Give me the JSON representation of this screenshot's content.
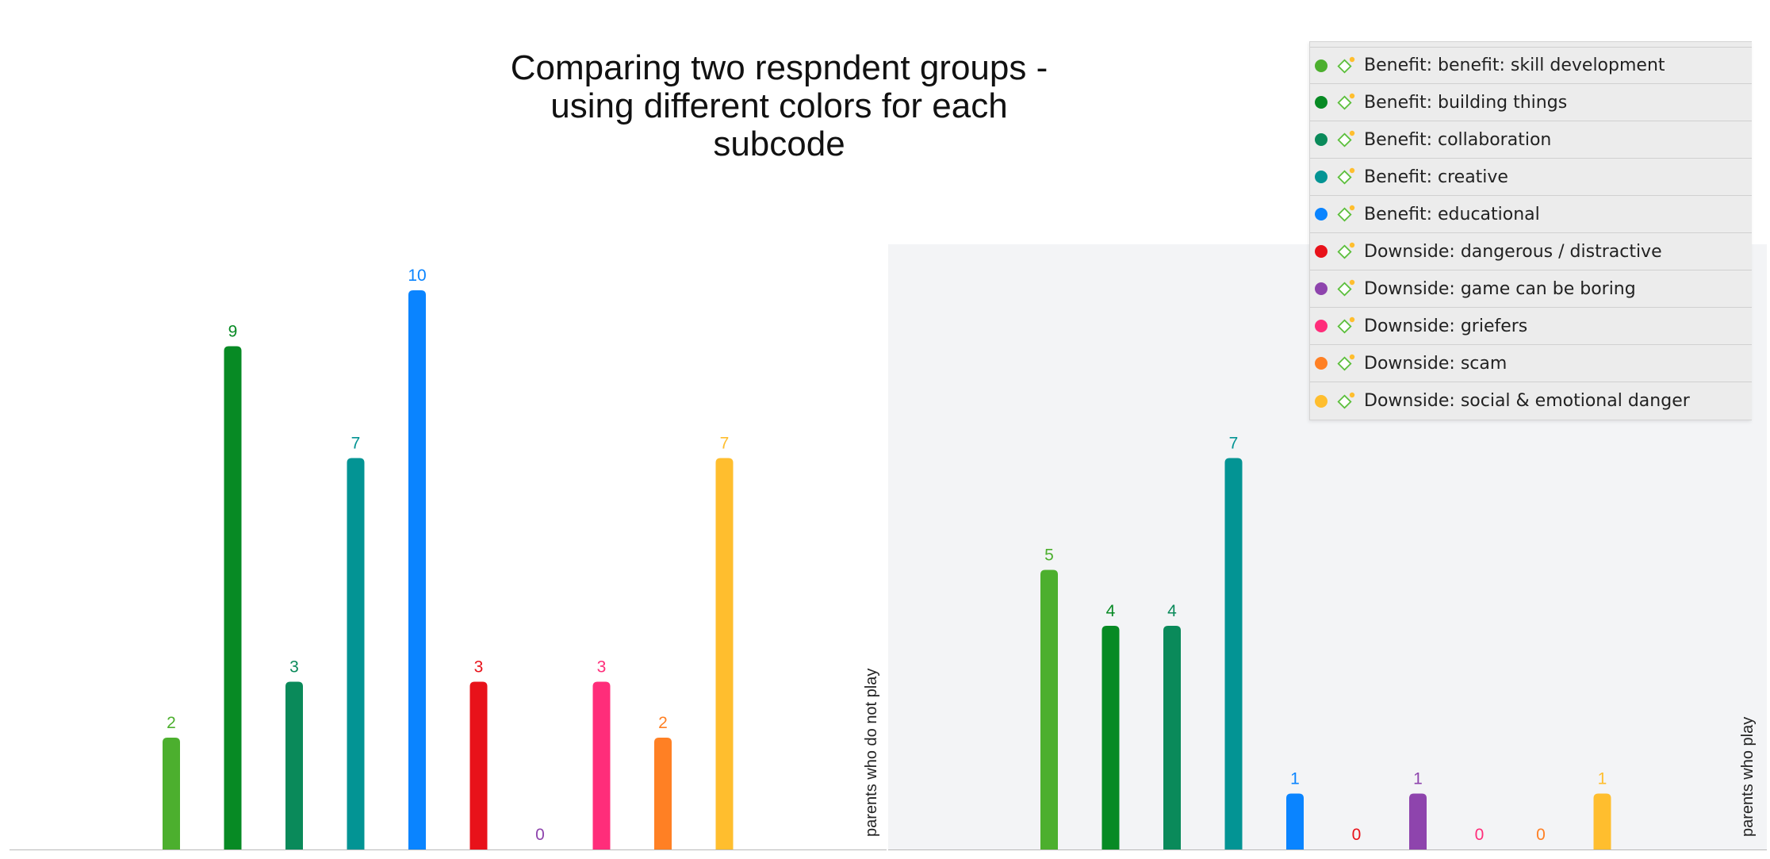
{
  "chart_data": {
    "type": "bar",
    "title": "Comparing two respndent groups -\nusing different colors for each\nsubcode",
    "categories": [
      "Benefit: benefit: skill development",
      "Benefit: building things",
      "Benefit: collaboration",
      "Benefit: creative",
      "Benefit: educational",
      "Downside: dangerous / distractive",
      "Downside: game can be boring",
      "Downside: griefers",
      "Downside: scam",
      "Downside: social & emotional danger"
    ],
    "colors": [
      "#4caf2e",
      "#078a24",
      "#0a8a5a",
      "#039494",
      "#0a84ff",
      "#e8121a",
      "#8e44ad",
      "#ff2d7a",
      "#ff8024",
      "#ffbe2e"
    ],
    "groups": [
      {
        "name": "parents who do not play",
        "values": [
          2,
          9,
          3,
          7,
          10,
          3,
          0,
          3,
          2,
          7
        ]
      },
      {
        "name": "parents who play",
        "values": [
          5,
          4,
          4,
          7,
          1,
          0,
          1,
          0,
          0,
          1
        ]
      }
    ],
    "ylim": [
      0,
      10
    ],
    "legend_position": "top-right",
    "grid": false
  },
  "legend": {
    "icon": "code-diamond-icon",
    "items": [
      {
        "label": "Benefit: benefit: skill development",
        "color": "#4caf2e"
      },
      {
        "label": "Benefit: building things",
        "color": "#078a24"
      },
      {
        "label": "Benefit: collaboration",
        "color": "#0a8a5a"
      },
      {
        "label": "Benefit: creative",
        "color": "#039494"
      },
      {
        "label": "Benefit: educational",
        "color": "#0a84ff"
      },
      {
        "label": "Downside: dangerous / distractive",
        "color": "#e8121a"
      },
      {
        "label": "Downside: game can be boring",
        "color": "#8e44ad"
      },
      {
        "label": "Downside: griefers",
        "color": "#ff2d7a"
      },
      {
        "label": "Downside: scam",
        "color": "#ff8024"
      },
      {
        "label": "Downside: social & emotional danger",
        "color": "#ffbe2e"
      }
    ]
  }
}
